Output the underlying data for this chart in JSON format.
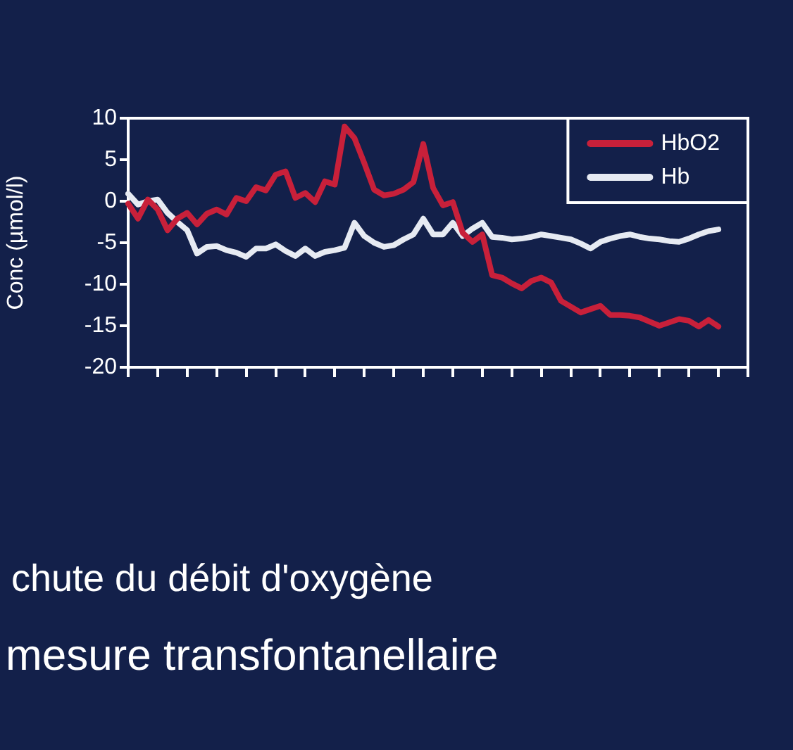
{
  "chart_data": {
    "type": "line",
    "ylabel": "Conc (µmol/l)",
    "categories": [
      null,
      null,
      null,
      null,
      null,
      null,
      null,
      null,
      null,
      null,
      null,
      null,
      null,
      null,
      null,
      null,
      null,
      null,
      null,
      null,
      null,
      null,
      null,
      null,
      null,
      null,
      null,
      null,
      null,
      null,
      null,
      null,
      null,
      null,
      null,
      null,
      null,
      null,
      null,
      null,
      null,
      null,
      null,
      null,
      null,
      null,
      null,
      null,
      null,
      null,
      null,
      null,
      null,
      null,
      null,
      null,
      null,
      null,
      null,
      null,
      null,
      null,
      null,
      null
    ],
    "ylim": [
      -20,
      10
    ],
    "yticks": [
      -20,
      -15,
      -10,
      -5,
      0,
      5,
      10
    ],
    "grid": false,
    "legend": "top right",
    "marker": "none",
    "line_style": "solid",
    "series": [
      {
        "name": "HbO2",
        "color": "#c8203a",
        "values": [
          -0.3,
          -2.1,
          0.2,
          -1,
          -3.5,
          -2.1,
          -1.4,
          -2.8,
          -1.5,
          -1,
          -1.6,
          0.4,
          0,
          1.7,
          1.3,
          3.2,
          3.6,
          0.4,
          1,
          -0.1,
          2.4,
          2,
          9,
          7.6,
          4.6,
          1.4,
          0.7,
          0.9,
          1.4,
          2.3,
          6.9,
          1.6,
          -0.5,
          -0.1,
          -3.8,
          -4.9,
          -4,
          -8.9,
          -9.2,
          -9.9,
          -10.5,
          -9.6,
          -9.2,
          -9.8,
          -12,
          -12.7,
          -13.4,
          -13,
          -12.6,
          -13.7,
          -13.7,
          -13.8,
          -14,
          -14.5,
          -15,
          -14.6,
          -14.2,
          -14.4,
          -15.1,
          -14.3,
          -15.1,
          null,
          null,
          null
        ]
      },
      {
        "name": "Hb",
        "color": "#e6eaf2",
        "values": [
          0.9,
          -0.4,
          0,
          0.2,
          -1.4,
          -2.5,
          -3.5,
          -6.3,
          -5.5,
          -5.4,
          -5.9,
          -6.2,
          -6.7,
          -5.7,
          -5.7,
          -5.2,
          -6,
          -6.6,
          -5.7,
          -6.6,
          -6.1,
          -5.9,
          -5.6,
          -2.6,
          -4.2,
          -5,
          -5.5,
          -5.3,
          -4.6,
          -4,
          -2.1,
          -4,
          -4,
          -2.6,
          -4.2,
          -3.3,
          -2.6,
          -4.3,
          -4.4,
          -4.6,
          -4.5,
          -4.3,
          -4,
          -4.2,
          -4.4,
          -4.6,
          -5.1,
          -5.7,
          -4.9,
          -4.5,
          -4.2,
          -4,
          -4.3,
          -4.5,
          -4.6,
          -4.8,
          -4.9,
          -4.5,
          -4,
          -3.6,
          -3.4,
          null,
          null,
          null
        ]
      }
    ],
    "annotations": [
      "chute du débit d'oxygène",
      "mesure transfontanellaire"
    ]
  }
}
